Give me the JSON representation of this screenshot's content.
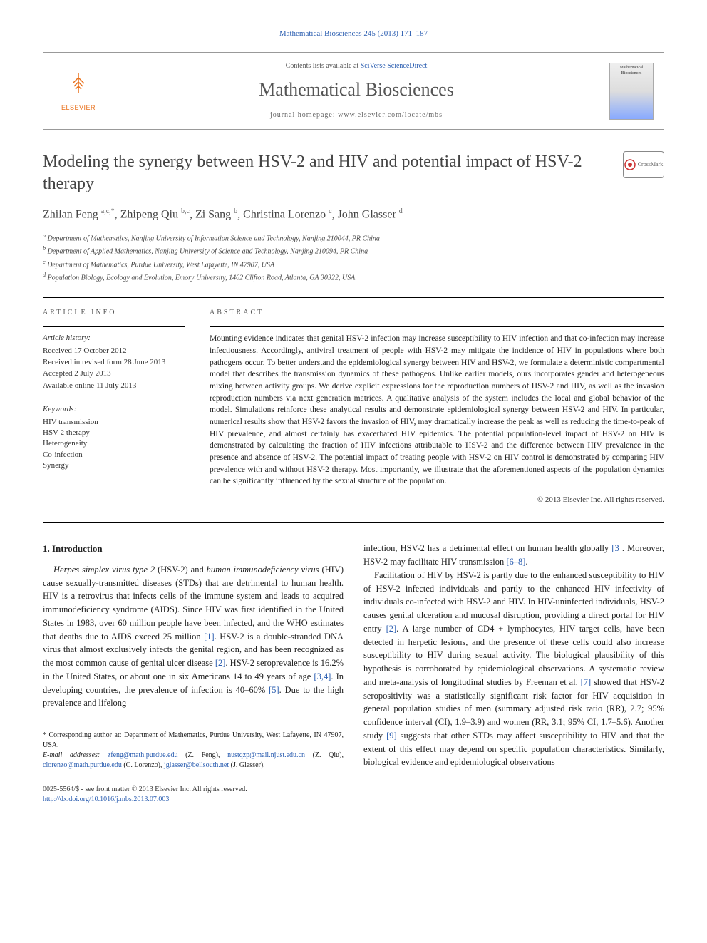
{
  "journal_ref": {
    "prefix": "",
    "link_text": "Mathematical Biosciences 245 (2013) 171–187"
  },
  "header": {
    "contents_prefix": "Contents lists available at ",
    "contents_link": "SciVerse ScienceDirect",
    "journal_title": "Mathematical Biosciences",
    "homepage_prefix": "journal homepage: ",
    "homepage_link": "www.elsevier.com/locate/mbs",
    "elsevier_label": "ELSEVIER",
    "cover_label": "Mathematical Biosciences"
  },
  "crossmark": "CrossMark",
  "title": "Modeling the synergy between HSV-2 and HIV and potential impact of HSV-2 therapy",
  "authors_html": "Zhilan Feng <sup>a,c,*</sup>, Zhipeng Qiu <sup>b,c</sup>, Zi Sang <sup>b</sup>, Christina Lorenzo <sup>c</sup>, John Glasser <sup>d</sup>",
  "affiliations": [
    "a Department of Mathematics, Nanjing University of Information Science and Technology, Nanjing 210044, PR China",
    "b Department of Applied Mathematics, Nanjing University of Science and Technology, Nanjing 210094, PR China",
    "c Department of Mathematics, Purdue University, West Lafayette, IN 47907, USA",
    "d Population Biology, Ecology and Evolution, Emory University, 1462 Clifton Road, Atlanta, GA 30322, USA"
  ],
  "info": {
    "label": "ARTICLE INFO",
    "history_label": "Article history:",
    "history": [
      "Received 17 October 2012",
      "Received in revised form 28 June 2013",
      "Accepted 2 July 2013",
      "Available online 11 July 2013"
    ],
    "keywords_label": "Keywords:",
    "keywords": [
      "HIV transmission",
      "HSV-2 therapy",
      "Heterogeneity",
      "Co-infection",
      "Synergy"
    ]
  },
  "abstract": {
    "label": "ABSTRACT",
    "text": "Mounting evidence indicates that genital HSV-2 infection may increase susceptibility to HIV infection and that co-infection may increase infectiousness. Accordingly, antiviral treatment of people with HSV-2 may mitigate the incidence of HIV in populations where both pathogens occur. To better understand the epidemiological synergy between HIV and HSV-2, we formulate a deterministic compartmental model that describes the transmission dynamics of these pathogens. Unlike earlier models, ours incorporates gender and heterogeneous mixing between activity groups. We derive explicit expressions for the reproduction numbers of HSV-2 and HIV, as well as the invasion reproduction numbers via next generation matrices. A qualitative analysis of the system includes the local and global behavior of the model. Simulations reinforce these analytical results and demonstrate epidemiological synergy between HSV-2 and HIV. In particular, numerical results show that HSV-2 favors the invasion of HIV, may dramatically increase the peak as well as reducing the time-to-peak of HIV prevalence, and almost certainly has exacerbated HIV epidemics. The potential population-level impact of HSV-2 on HIV is demonstrated by calculating the fraction of HIV infections attributable to HSV-2 and the difference between HIV prevalence in the presence and absence of HSV-2. The potential impact of treating people with HSV-2 on HIV control is demonstrated by comparing HIV prevalence with and without HSV-2 therapy. Most importantly, we illustrate that the aforementioned aspects of the population dynamics can be significantly influenced by the sexual structure of the population.",
    "copyright": "© 2013 Elsevier Inc. All rights reserved."
  },
  "body": {
    "heading": "1. Introduction",
    "col1_p1": "Herpes simplex virus type 2 (HSV-2) and human immunodeficiency virus (HIV) cause sexually-transmitted diseases (STDs) that are detrimental to human health. HIV is a retrovirus that infects cells of the immune system and leads to acquired immunodeficiency syndrome (AIDS). Since HIV was first identified in the United States in 1983, over 60 million people have been infected, and the WHO estimates that deaths due to AIDS exceed 25 million [1]. HSV-2 is a double-stranded DNA virus that almost exclusively infects the genital region, and has been recognized as the most common cause of genital ulcer disease [2]. HSV-2 seroprevalence is 16.2% in the United States, or about one in six Americans 14 to 49 years of age [3,4]. In developing countries, the prevalence of infection is 40–60% [5]. Due to the high prevalence and lifelong",
    "col2_p1": "infection, HSV-2 has a detrimental effect on human health globally [3]. Moreover, HSV-2 may facilitate HIV transmission [6–8].",
    "col2_p2": "Facilitation of HIV by HSV-2 is partly due to the enhanced susceptibility to HIV of HSV-2 infected individuals and partly to the enhanced HIV infectivity of individuals co-infected with HSV-2 and HIV. In HIV-uninfected individuals, HSV-2 causes genital ulceration and mucosal disruption, providing a direct portal for HIV entry [2]. A large number of CD4 + lymphocytes, HIV target cells, have been detected in herpetic lesions, and the presence of these cells could also increase susceptibility to HIV during sexual activity. The biological plausibility of this hypothesis is corroborated by epidemiological observations. A systematic review and meta-analysis of longitudinal studies by Freeman et al. [7] showed that HSV-2 seropositivity was a statistically significant risk factor for HIV acquisition in general population studies of men (summary adjusted risk ratio (RR), 2.7; 95% confidence interval (CI), 1.9–3.9) and women (RR, 3.1; 95% CI, 1.7–5.6). Another study [9] suggests that other STDs may affect susceptibility to HIV and that the extent of this effect may depend on specific population characteristics. Similarly, biological evidence and epidemiological observations"
  },
  "footnote": {
    "corresp": "* Corresponding author at: Department of Mathematics, Purdue University, West Lafayette, IN 47907, USA.",
    "emails_label": "E-mail addresses: ",
    "emails": "zfeng@math.purdue.edu (Z. Feng), nustqzp@mail.njust.edu.cn (Z. Qiu), clorenzo@math.purdue.edu (C. Lorenzo), jglasser@bellsouth.net (J. Glasser)."
  },
  "issn": {
    "line1": "0025-5564/$ - see front matter © 2013 Elsevier Inc. All rights reserved.",
    "doi": "http://dx.doi.org/10.1016/j.mbs.2013.07.003"
  },
  "refs": {
    "r1": "[1]",
    "r2": "[2]",
    "r3": "[3]",
    "r34": "[3,4]",
    "r5": "[5]",
    "r68": "[6–8]",
    "r7": "[7]",
    "r9": "[9]"
  }
}
